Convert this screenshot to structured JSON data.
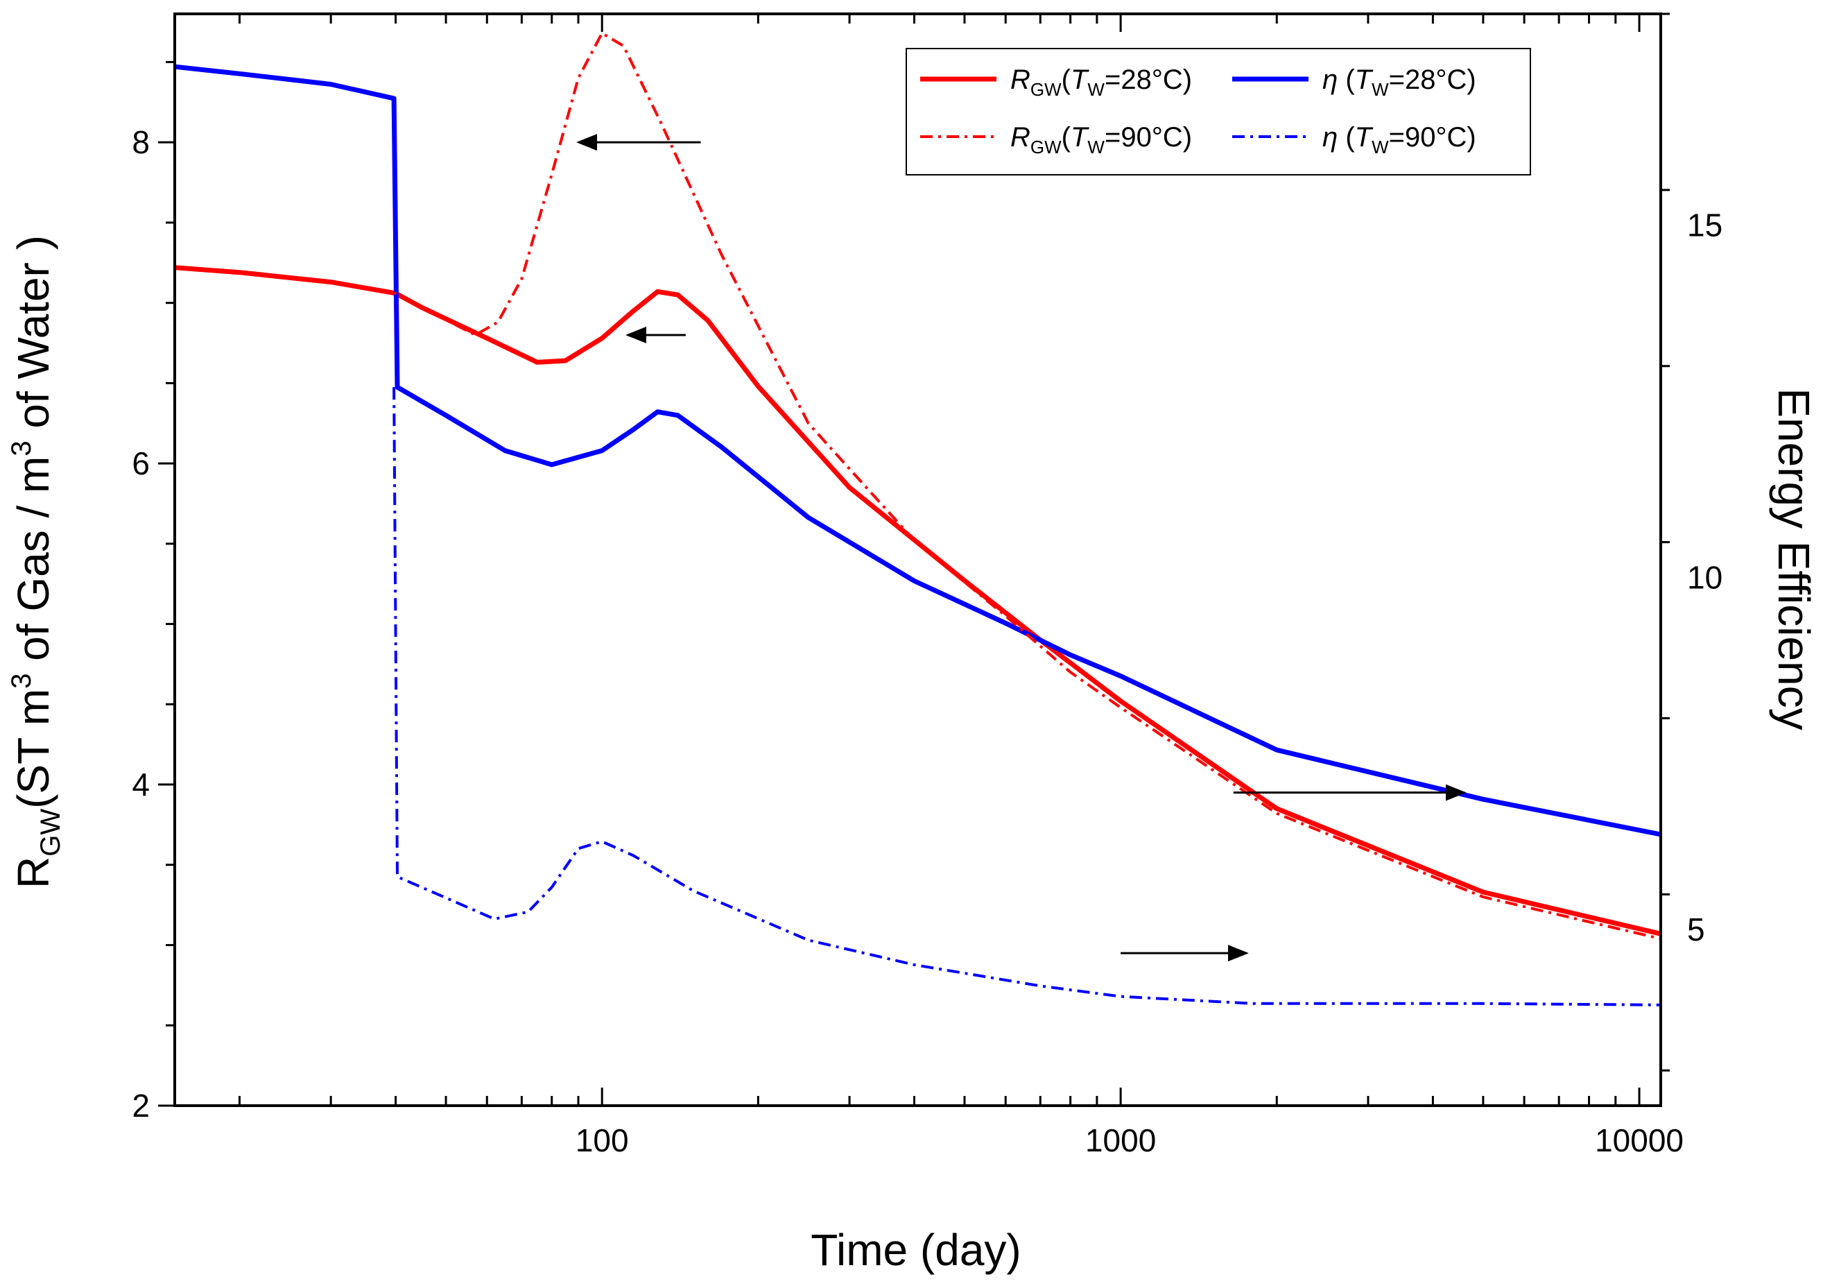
{
  "chart_data": {
    "type": "line",
    "title": "",
    "xlabel": "Time (day)",
    "xscale": "log",
    "xlim": [
      15,
      11000
    ],
    "x_ticks": [
      100,
      1000,
      10000
    ],
    "x_tick_labels": [
      "100",
      "1000",
      "10000"
    ],
    "ylabel_left": {
      "main": "R",
      "sub": "GW",
      "rest_a": "(ST m",
      "sup_a": "3",
      "rest_b": " of Gas / m",
      "sup_b": "3",
      "rest_c": " of Water )"
    },
    "ylim_left": [
      2,
      8.8
    ],
    "y_ticks_left": [
      2,
      4,
      6,
      8
    ],
    "y_tick_labels_left": [
      "2",
      "4",
      "6",
      "8"
    ],
    "ylabel_right": "Energy Efficiency",
    "ylim_right": [
      2.5,
      18.0
    ],
    "y_ticks_right": [
      5,
      10,
      15
    ],
    "y_tick_labels_right": [
      "5",
      "10",
      "15"
    ],
    "legend": {
      "placement": "top-right",
      "entries": [
        {
          "series": "rgw28",
          "symbol": "R",
          "sub": "GW",
          "open": "(",
          "tsym": "T",
          "tsub": "W",
          "rest": "=28°C)"
        },
        {
          "series": "eta28",
          "symbol": "η",
          "sub": "",
          "open": " (",
          "tsym": "T",
          "tsub": "W",
          "rest": "=28°C)"
        },
        {
          "series": "rgw90",
          "symbol": "R",
          "sub": "GW",
          "open": "(",
          "tsym": "T",
          "tsub": "W",
          "rest": "=90°C)"
        },
        {
          "series": "eta90",
          "symbol": "η",
          "sub": "",
          "open": " (",
          "tsym": "T",
          "tsub": "W",
          "rest": "=90°C)"
        }
      ]
    },
    "series": [
      {
        "id": "rgw28",
        "name": "R_GW (T_W=28°C)",
        "axis": "left",
        "color": "#ff0000",
        "style": "solid",
        "x": [
          15,
          20,
          30,
          40,
          45,
          60,
          75,
          85,
          100,
          115,
          128,
          140,
          160,
          200,
          300,
          500,
          700,
          1000,
          2000,
          5000,
          11000
        ],
        "y": [
          7.22,
          7.19,
          7.13,
          7.06,
          6.97,
          6.78,
          6.63,
          6.64,
          6.78,
          6.95,
          7.07,
          7.05,
          6.89,
          6.48,
          5.85,
          5.27,
          4.9,
          4.52,
          3.85,
          3.33,
          3.07
        ]
      },
      {
        "id": "eta28",
        "name": "η (T_W=28°C)",
        "axis": "left_scaled_right",
        "color": "#0000ff",
        "style": "solid",
        "x": [
          15,
          20,
          30,
          39.7,
          40.3,
          50,
          65,
          80,
          100,
          115,
          128,
          140,
          170,
          250,
          400,
          600,
          800,
          1000,
          2000,
          5000,
          11000
        ],
        "y": [
          17.25,
          17.15,
          17.0,
          16.8,
          12.7,
          12.3,
          11.8,
          11.6,
          11.8,
          12.1,
          12.35,
          12.3,
          11.85,
          10.85,
          9.95,
          9.35,
          8.9,
          8.6,
          7.55,
          6.85,
          6.35
        ]
      },
      {
        "id": "rgw90",
        "name": "R_GW (T_W=90°C)",
        "axis": "left",
        "color": "#ff0000",
        "style": "dashdot",
        "x": [
          15,
          20,
          30,
          40,
          45,
          57,
          63,
          70,
          80,
          90,
          100,
          110,
          130,
          170,
          250,
          400,
          600,
          800,
          1000,
          2000,
          5000,
          11000
        ],
        "y": [
          7.22,
          7.19,
          7.13,
          7.06,
          6.97,
          6.8,
          6.88,
          7.15,
          7.8,
          8.4,
          8.68,
          8.6,
          8.12,
          7.3,
          6.25,
          5.52,
          5.05,
          4.7,
          4.48,
          3.82,
          3.3,
          3.04
        ]
      },
      {
        "id": "eta90",
        "name": "η (T_W=90°C)",
        "axis": "right",
        "color": "#0000ff",
        "style": "dashdot",
        "x": [
          39.7,
          40.3,
          50,
          62,
          72,
          80,
          90,
          100,
          115,
          150,
          250,
          400,
          700,
          1000,
          1800,
          3000,
          5000,
          11000
        ],
        "y": [
          12.7,
          5.75,
          5.45,
          5.15,
          5.25,
          5.6,
          6.15,
          6.25,
          6.05,
          5.55,
          4.85,
          4.5,
          4.2,
          4.05,
          3.95,
          3.95,
          3.95,
          3.93
        ]
      }
    ],
    "annotations": [
      {
        "type": "arrow",
        "direction": "left",
        "points_to": "left-axis",
        "x_from": 155,
        "x_to": 90,
        "y": 8.0,
        "color": "#000000"
      },
      {
        "type": "arrow",
        "direction": "left",
        "points_to": "left-axis",
        "x_from": 145,
        "x_to": 112,
        "y": 6.8,
        "color": "#000000"
      },
      {
        "type": "arrow",
        "direction": "right",
        "points_to": "right-axis",
        "x_from": 1650,
        "x_to": 4600,
        "y": 3.95,
        "color": "#000000"
      },
      {
        "type": "arrow",
        "direction": "right",
        "points_to": "right-axis",
        "x_from": 1000,
        "x_to": 1750,
        "y": 2.95,
        "color": "#000000"
      }
    ]
  }
}
